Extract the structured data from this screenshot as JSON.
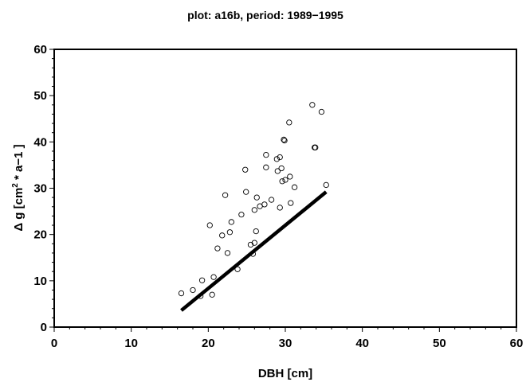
{
  "chart_data": {
    "type": "scatter",
    "title": "plot: a16b, period: 1989−1995",
    "xlabel": "DBH  [cm]",
    "ylabel_main": "Δ g  [cm",
    "ylabel_sup": "2",
    "ylabel_rest": " * a−1 ]",
    "xlim": [
      0,
      60
    ],
    "ylim": [
      0,
      60
    ],
    "xticks": [
      0,
      10,
      20,
      30,
      40,
      50,
      60
    ],
    "yticks": [
      0,
      10,
      20,
      30,
      40,
      50,
      60
    ],
    "grid": false,
    "series": [
      {
        "kind": "points",
        "x": [
          16.5,
          18.0,
          19.0,
          19.2,
          20.2,
          20.5,
          20.7,
          21.2,
          21.8,
          22.2,
          22.5,
          22.8,
          23.0,
          23.8,
          24.3,
          24.8,
          24.9,
          25.5,
          25.8,
          26.0,
          26.0,
          26.2,
          26.3,
          26.7,
          27.3,
          27.5,
          27.5,
          28.2,
          28.9,
          29.0,
          29.3,
          29.3,
          29.5,
          29.6,
          29.8,
          29.9,
          30.0,
          30.5,
          30.6,
          30.7,
          31.2,
          33.5,
          33.8,
          33.9,
          34.7,
          35.3
        ],
        "y": [
          7.3,
          8.0,
          6.7,
          10.1,
          22.0,
          7.0,
          10.8,
          17.0,
          19.8,
          28.5,
          16.0,
          20.5,
          22.7,
          12.5,
          24.3,
          34.0,
          29.2,
          17.8,
          15.8,
          25.3,
          18.2,
          20.7,
          28.0,
          26.1,
          26.5,
          34.5,
          37.2,
          27.5,
          36.3,
          33.7,
          36.7,
          25.8,
          34.3,
          31.5,
          40.5,
          40.3,
          31.8,
          44.2,
          32.5,
          26.8,
          30.2,
          48.0,
          38.8,
          38.8,
          46.5,
          30.7
        ]
      },
      {
        "kind": "line",
        "x": [
          16.5,
          35.3
        ],
        "y": [
          3.6,
          29.2
        ]
      }
    ]
  }
}
